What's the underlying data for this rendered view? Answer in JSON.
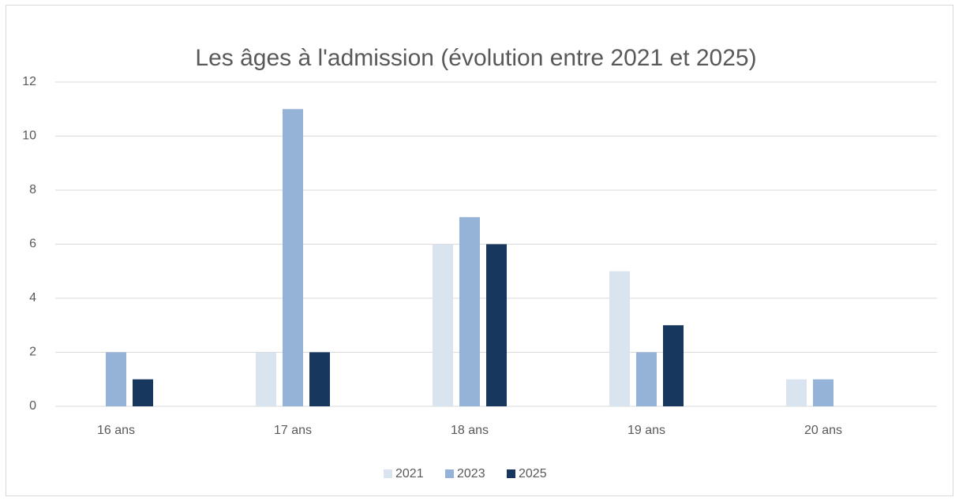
{
  "chart_data": {
    "type": "bar",
    "title": "Les âges à l'admission (évolution entre 2021 et 2025)",
    "categories": [
      "16 ans",
      "17 ans",
      "18 ans",
      "19 ans",
      "20 ans"
    ],
    "series": [
      {
        "name": "2021",
        "color": "#dae3f0",
        "values": [
          0,
          2,
          6,
          5,
          1
        ]
      },
      {
        "name": "2023",
        "color": "#95b3d7",
        "values": [
          2,
          11,
          7,
          2,
          1
        ]
      },
      {
        "name": "2025",
        "color": "#17375e",
        "values": [
          1,
          2,
          6,
          3,
          0
        ]
      }
    ],
    "ylim": [
      0,
      12
    ],
    "yticks": [
      0,
      2,
      4,
      6,
      8,
      10,
      12
    ],
    "grid": true,
    "legend": "bottom"
  }
}
